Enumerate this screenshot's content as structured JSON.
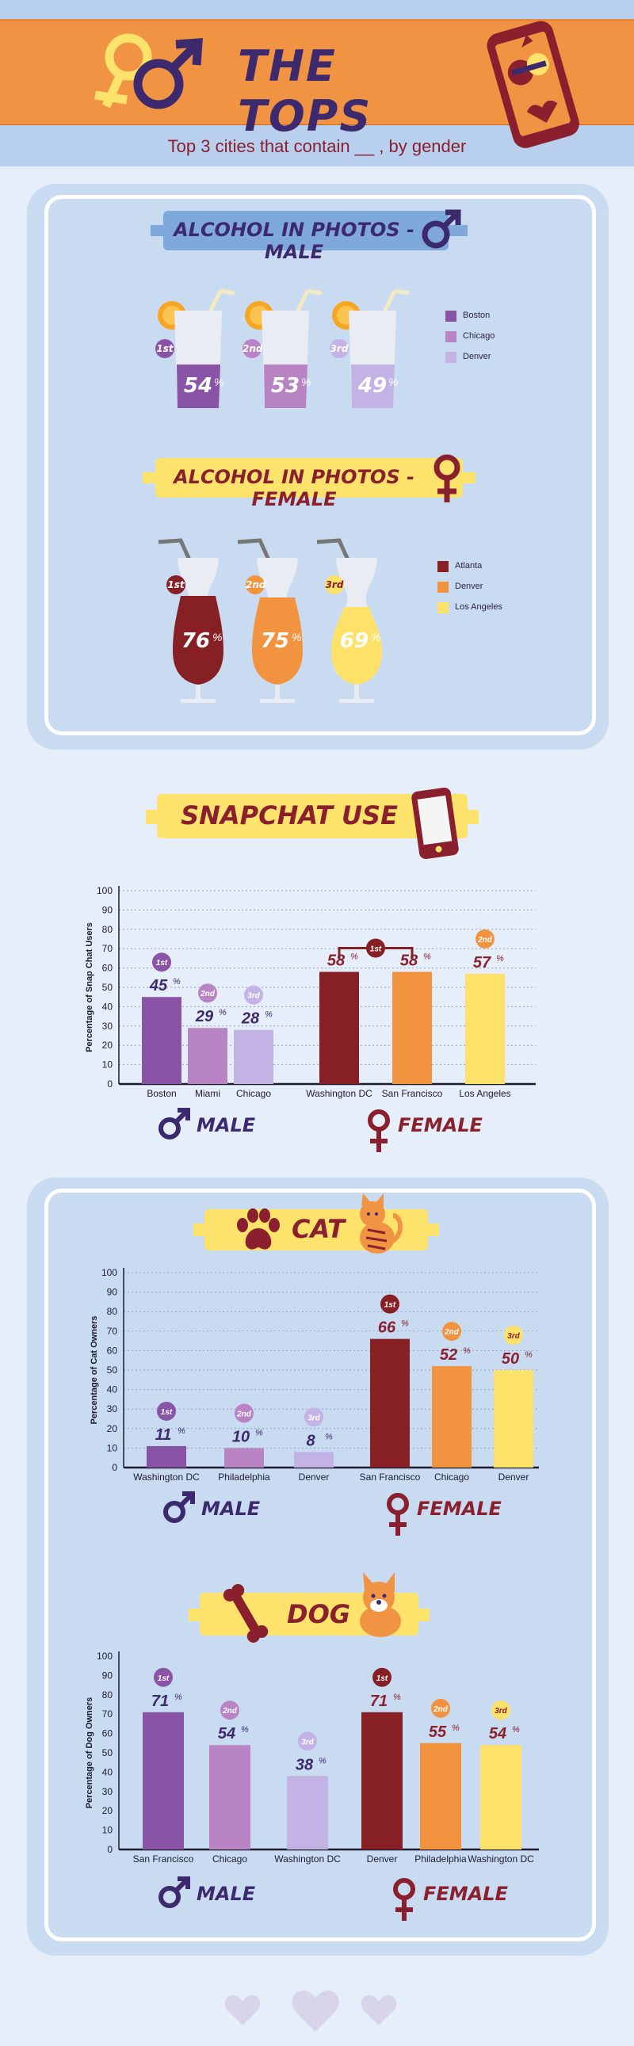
{
  "header": {
    "title": "THE TOPS",
    "subtitle": "Top 3 cities that contain __ , by gender"
  },
  "colors": {
    "male1": "#8a54a6",
    "male2": "#b984c4",
    "male3": "#c2b3e4",
    "female1": "#862024",
    "female2": "#f2943f",
    "female3": "#fee169",
    "purple_dark": "#3d2a6e",
    "maroon": "#8a1f2e",
    "yellow": "#fde36b",
    "blue_banner": "#7fa9da"
  },
  "alcohol_male": {
    "title": "ALCOHOL IN PHOTOS - MALE",
    "items": [
      {
        "rank": "1st",
        "pct": "54",
        "city": "Boston"
      },
      {
        "rank": "2nd",
        "pct": "53",
        "city": "Chicago"
      },
      {
        "rank": "3rd",
        "pct": "49",
        "city": "Denver"
      }
    ]
  },
  "alcohol_female": {
    "title": "ALCOHOL IN PHOTOS - FEMALE",
    "items": [
      {
        "rank": "1st",
        "pct": "76",
        "city": "Atlanta"
      },
      {
        "rank": "2nd",
        "pct": "75",
        "city": "Denver"
      },
      {
        "rank": "3rd",
        "pct": "69",
        "city": "Los Angeles"
      }
    ]
  },
  "snapchat": {
    "title": "SNAPCHAT USE"
  },
  "cat": {
    "title": "CAT"
  },
  "dog": {
    "title": "DOG"
  },
  "gender_labels": {
    "male": "MALE",
    "female": "FEMALE"
  },
  "chart_data": [
    {
      "type": "bar",
      "title": "SNAPCHAT USE",
      "ylabel": "Percentage of Snap Chat Users",
      "ylim": [
        0,
        100
      ],
      "yticks": [
        0,
        10,
        20,
        30,
        40,
        50,
        60,
        70,
        80,
        90,
        100
      ],
      "grid": "dotted",
      "categories": [
        "Boston",
        "Miami",
        "Chicago",
        "Washington DC",
        "San Francisco",
        "Los Angeles"
      ],
      "values": [
        45,
        29,
        28,
        58,
        58,
        57
      ],
      "ranks": [
        "1st",
        "2nd",
        "3rd",
        "1st",
        "1st",
        "2nd"
      ],
      "groups": [
        "MALE",
        "MALE",
        "MALE",
        "FEMALE",
        "FEMALE",
        "FEMALE"
      ]
    },
    {
      "type": "bar",
      "title": "CAT",
      "ylabel": "Percentage of Cat Owners",
      "ylim": [
        0,
        100
      ],
      "yticks": [
        0,
        10,
        20,
        30,
        40,
        50,
        60,
        70,
        80,
        90,
        100
      ],
      "grid": "dotted",
      "categories": [
        "Washington DC",
        "Philadelphia",
        "Denver",
        "San Francisco",
        "Chicago",
        "Denver"
      ],
      "values": [
        11,
        10,
        8,
        66,
        52,
        50
      ],
      "ranks": [
        "1st",
        "2nd",
        "3rd",
        "1st",
        "2nd",
        "3rd"
      ],
      "groups": [
        "MALE",
        "MALE",
        "MALE",
        "FEMALE",
        "FEMALE",
        "FEMALE"
      ]
    },
    {
      "type": "bar",
      "title": "DOG",
      "ylabel": "Percentage of Dog Owners",
      "ylim": [
        0,
        100
      ],
      "yticks": [
        0,
        10,
        20,
        30,
        40,
        50,
        60,
        70,
        80,
        90,
        100
      ],
      "grid": "none",
      "categories": [
        "San Francisco",
        "Chicago",
        "Washington DC",
        "Denver",
        "Philadelphia",
        "Washington DC"
      ],
      "values": [
        71,
        54,
        38,
        71,
        55,
        54
      ],
      "ranks": [
        "1st",
        "2nd",
        "3rd",
        "1st",
        "2nd",
        "3rd"
      ],
      "groups": [
        "MALE",
        "MALE",
        "MALE",
        "FEMALE",
        "FEMALE",
        "FEMALE"
      ]
    }
  ]
}
